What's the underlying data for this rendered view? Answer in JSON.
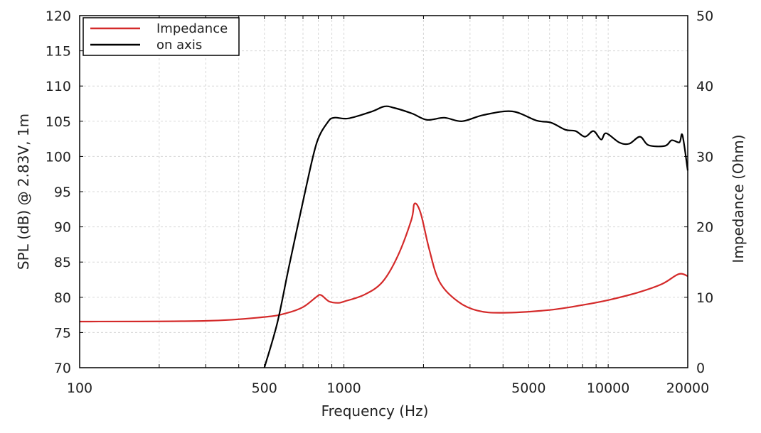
{
  "chart_data": {
    "type": "line",
    "title": "",
    "xlabel": "Frequency (Hz)",
    "ylabel": "SPL (dB) @ 2.83V, 1m",
    "y2label": "Impedance (Ohm)",
    "xscale": "log",
    "xlim": [
      100,
      20000
    ],
    "ylim": [
      70,
      120
    ],
    "y2lim": [
      0,
      50
    ],
    "grid": true,
    "legend_position": "top-left",
    "x_ticks": [
      100,
      500,
      1000,
      5000,
      10000,
      20000
    ],
    "y_ticks": [
      70,
      75,
      80,
      85,
      90,
      95,
      100,
      105,
      110,
      115,
      120
    ],
    "y2_ticks": [
      0,
      10,
      20,
      30,
      40,
      50
    ],
    "series": [
      {
        "name": "Impedance",
        "axis": "right",
        "color": "#d42a2a",
        "x": [
          100,
          300,
          500,
          600,
          700,
          790,
          820,
          880,
          950,
          1000,
          1200,
          1400,
          1600,
          1800,
          1850,
          1950,
          2100,
          2300,
          2700,
          3200,
          4000,
          6000,
          8000,
          10000,
          13000,
          16000,
          18500,
          20000
        ],
        "y": [
          6.55,
          6.65,
          7.2,
          7.7,
          8.6,
          10.1,
          10.3,
          9.4,
          9.2,
          9.4,
          10.4,
          12.2,
          15.9,
          21,
          23.3,
          22,
          16.9,
          12.2,
          9.4,
          8.1,
          7.8,
          8.2,
          8.9,
          9.6,
          10.7,
          11.9,
          13.3,
          13
        ]
      },
      {
        "name": "on axis",
        "axis": "left",
        "color": "#000000",
        "x": [
          500,
          560,
          620,
          718,
          790,
          870,
          920,
          1040,
          1280,
          1420,
          1550,
          1810,
          2060,
          2400,
          2800,
          3380,
          4330,
          5350,
          6080,
          6870,
          7530,
          8170,
          8800,
          9400,
          9820,
          11000,
          12000,
          13200,
          14200,
          16400,
          17400,
          18600,
          19100,
          20000
        ],
        "y": [
          70,
          76.4,
          84.4,
          95.5,
          102,
          104.9,
          105.5,
          105.4,
          106.4,
          107.1,
          106.9,
          106.1,
          105.2,
          105.5,
          105,
          105.9,
          106.4,
          105.1,
          104.8,
          103.8,
          103.6,
          102.8,
          103.6,
          102.4,
          103.3,
          102,
          101.8,
          102.8,
          101.6,
          101.5,
          102.3,
          102,
          103,
          98
        ]
      }
    ]
  }
}
